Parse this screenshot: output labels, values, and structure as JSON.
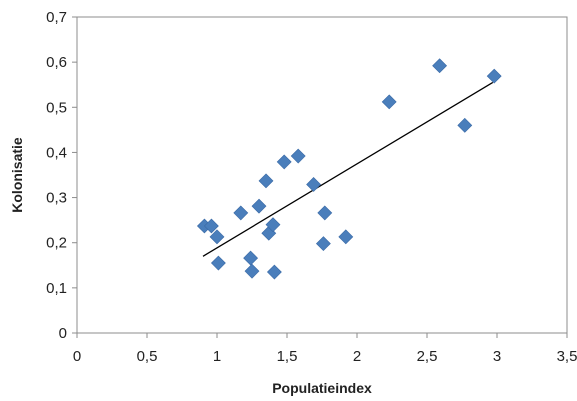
{
  "chart_data": {
    "type": "scatter",
    "title": "",
    "xlabel": "Populatieindex",
    "ylabel": "Kolonisatie",
    "xlim": [
      0,
      3.5
    ],
    "ylim": [
      0,
      0.7
    ],
    "grid": false,
    "legend": "none",
    "x_ticks": [
      "0",
      "0,5",
      "1",
      "1,5",
      "2",
      "2,5",
      "3",
      "3,5"
    ],
    "y_ticks": [
      "0",
      "0,1",
      "0,2",
      "0,3",
      "0,4",
      "0,5",
      "0,6",
      "0,7"
    ],
    "marker": "diamond",
    "marker_color": "#4a7ebb",
    "series": [
      {
        "points": [
          {
            "x": 0.91,
            "y": 0.237
          },
          {
            "x": 0.96,
            "y": 0.237
          },
          {
            "x": 1.0,
            "y": 0.213
          },
          {
            "x": 1.01,
            "y": 0.155
          },
          {
            "x": 1.17,
            "y": 0.266
          },
          {
            "x": 1.24,
            "y": 0.166
          },
          {
            "x": 1.25,
            "y": 0.137
          },
          {
            "x": 1.3,
            "y": 0.281
          },
          {
            "x": 1.35,
            "y": 0.337
          },
          {
            "x": 1.37,
            "y": 0.221
          },
          {
            "x": 1.4,
            "y": 0.24
          },
          {
            "x": 1.41,
            "y": 0.135
          },
          {
            "x": 1.48,
            "y": 0.379
          },
          {
            "x": 1.58,
            "y": 0.392
          },
          {
            "x": 1.69,
            "y": 0.329
          },
          {
            "x": 1.76,
            "y": 0.198
          },
          {
            "x": 1.77,
            "y": 0.266
          },
          {
            "x": 1.92,
            "y": 0.213
          },
          {
            "x": 2.23,
            "y": 0.512
          },
          {
            "x": 2.59,
            "y": 0.592
          },
          {
            "x": 2.77,
            "y": 0.46
          },
          {
            "x": 2.98,
            "y": 0.569
          }
        ]
      }
    ],
    "trendline": {
      "type": "linear",
      "color": "#000000",
      "from": {
        "x": 0.9,
        "y": 0.17
      },
      "to": {
        "x": 2.97,
        "y": 0.555
      }
    }
  }
}
